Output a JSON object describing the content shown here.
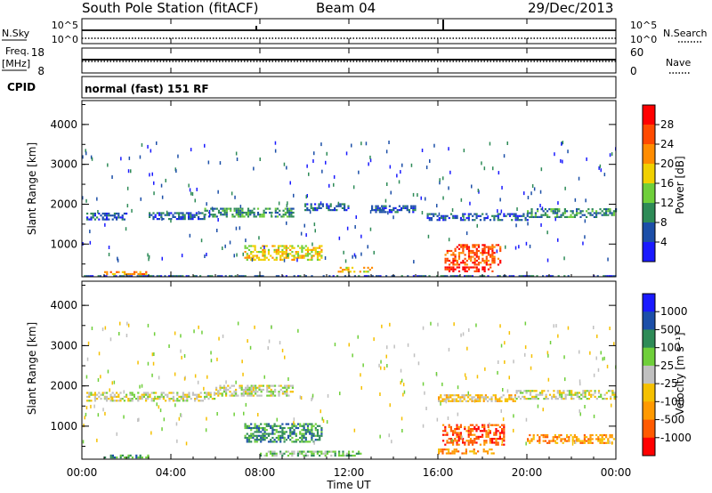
{
  "header": {
    "station": "South Pole Station (fitACF)",
    "beam": "Beam 04",
    "date": "29/Dec/2013"
  },
  "top_panels": {
    "nsky_label": "N.Sky",
    "nsky_ticks": [
      "10^5",
      "10^0"
    ],
    "nsearch_label": "N.Search",
    "nsearch_ticks": [
      "10^5",
      "10^0"
    ],
    "freq_label": "Freq.",
    "freq_unit": "[MHz]",
    "freq_ticks": [
      "18",
      "8"
    ],
    "nave_label": "Nave",
    "nave_ticks": [
      "60",
      "0"
    ],
    "cpid_label": "CPID",
    "cpid_value": "normal (fast) 151 RF"
  },
  "colors": {
    "power_scale": [
      "#1a1aff",
      "#1c4fa8",
      "#2e8b57",
      "#6fcf3a",
      "#f0d000",
      "#ff8c00",
      "#ff4a00",
      "#ff0000"
    ],
    "velocity_scale": [
      "#ff0000",
      "#ff5a00",
      "#ff9900",
      "#f5c000",
      "#c0c0c0",
      "#6fcf3a",
      "#2e8b57",
      "#1c4fa8",
      "#1a1aff"
    ]
  },
  "chart_data": [
    {
      "type": "heatmap",
      "quantity": "power",
      "ylabel": "Slant Range [km]",
      "yticks": [
        "1000",
        "2000",
        "3000",
        "4000"
      ],
      "ylim": [
        180,
        4600
      ],
      "xlim": [
        0,
        24
      ],
      "colorbar_label": "Power [dB]",
      "colorbar_ticks": [
        "4",
        "8",
        "12",
        "16",
        "20",
        "24",
        "28"
      ],
      "echo_bands": [
        {
          "t0": 0.2,
          "t1": 2.0,
          "r_center": 1700,
          "r_width": 180,
          "level": 1
        },
        {
          "t0": 3.0,
          "t1": 5.5,
          "r_center": 1720,
          "r_width": 160,
          "level": 1
        },
        {
          "t0": 5.5,
          "t1": 9.5,
          "r_center": 1800,
          "r_width": 220,
          "level": 2
        },
        {
          "t0": 10.0,
          "t1": 12.0,
          "r_center": 1950,
          "r_width": 150,
          "level": 1
        },
        {
          "t0": 13.0,
          "t1": 15.0,
          "r_center": 1900,
          "r_width": 150,
          "level": 1
        },
        {
          "t0": 15.5,
          "t1": 20.0,
          "r_center": 1700,
          "r_width": 150,
          "level": 1
        },
        {
          "t0": 20.0,
          "t1": 24.0,
          "r_center": 1800,
          "r_width": 200,
          "level": 2
        },
        {
          "t0": 7.3,
          "t1": 10.8,
          "r_center": 800,
          "r_width": 350,
          "level": 4
        },
        {
          "t0": 16.3,
          "t1": 18.8,
          "r_center": 750,
          "r_width": 500,
          "level": 6
        },
        {
          "t0": 16.3,
          "t1": 18.5,
          "r_center": 380,
          "r_width": 120,
          "level": 7
        },
        {
          "t0": 1.0,
          "t1": 3.0,
          "r_center": 280,
          "r_width": 80,
          "level": 5
        },
        {
          "t0": 11.5,
          "t1": 13.0,
          "r_center": 380,
          "r_width": 100,
          "level": 4
        },
        {
          "t0": 0.0,
          "t1": 24.0,
          "r_center": 200,
          "r_width": 40,
          "level": 1
        }
      ]
    },
    {
      "type": "heatmap",
      "quantity": "velocity",
      "ylabel": "Slant Range [km]",
      "yticks": [
        "1000",
        "2000",
        "3000",
        "4000"
      ],
      "ylim": [
        180,
        4600
      ],
      "xlim": [
        0,
        24
      ],
      "xlabel": "Time UT",
      "xticks": [
        "00:00",
        "04:00",
        "08:00",
        "12:00",
        "16:00",
        "20:00",
        "00:00"
      ],
      "colorbar_label": "Velocity [m s⁻¹]",
      "colorbar_ticks": [
        "1000",
        "500",
        "100",
        "25",
        "-25",
        "-100",
        "-500",
        "-1000"
      ],
      "echo_bands": [
        {
          "t0": 0.2,
          "t1": 6.0,
          "r_center": 1750,
          "r_width": 200,
          "level": 4
        },
        {
          "t0": 6.0,
          "t1": 9.5,
          "r_center": 1900,
          "r_width": 250,
          "level": 4
        },
        {
          "t0": 16.0,
          "t1": 19.5,
          "r_center": 1700,
          "r_width": 180,
          "level": 3
        },
        {
          "t0": 19.5,
          "t1": 24.0,
          "r_center": 1800,
          "r_width": 200,
          "level": 4
        },
        {
          "t0": 7.3,
          "t1": 10.8,
          "r_center": 850,
          "r_width": 450,
          "level": 6
        },
        {
          "t0": 8.0,
          "t1": 12.5,
          "r_center": 330,
          "r_width": 120,
          "level": 5
        },
        {
          "t0": 16.2,
          "t1": 19.0,
          "r_center": 800,
          "r_width": 500,
          "level": 1
        },
        {
          "t0": 16.0,
          "t1": 18.5,
          "r_center": 380,
          "r_width": 130,
          "level": 2
        },
        {
          "t0": 1.0,
          "t1": 3.0,
          "r_center": 260,
          "r_width": 70,
          "level": 6
        },
        {
          "t0": 20.0,
          "t1": 24.0,
          "r_center": 700,
          "r_width": 200,
          "level": 2
        }
      ]
    }
  ]
}
